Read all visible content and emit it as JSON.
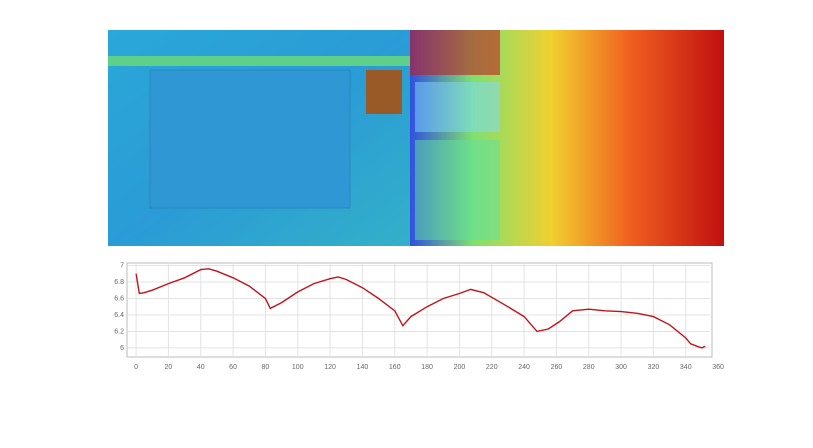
{
  "chart_data": {
    "type": "line",
    "x": [
      0,
      2,
      5,
      10,
      20,
      30,
      40,
      45,
      50,
      60,
      70,
      80,
      83,
      90,
      100,
      110,
      120,
      125,
      130,
      140,
      150,
      160,
      165,
      170,
      180,
      190,
      200,
      207,
      215,
      230,
      240,
      248,
      255,
      262,
      270,
      280,
      290,
      300,
      310,
      320,
      330,
      340,
      343,
      347,
      350,
      352
    ],
    "values": [
      6.9,
      6.66,
      6.67,
      6.7,
      6.78,
      6.85,
      6.95,
      6.96,
      6.93,
      6.85,
      6.75,
      6.6,
      6.48,
      6.55,
      6.68,
      6.78,
      6.84,
      6.86,
      6.83,
      6.73,
      6.6,
      6.45,
      6.27,
      6.38,
      6.5,
      6.6,
      6.66,
      6.71,
      6.67,
      6.5,
      6.38,
      6.2,
      6.23,
      6.32,
      6.45,
      6.47,
      6.45,
      6.44,
      6.42,
      6.38,
      6.28,
      6.12,
      6.05,
      6.02,
      6.0,
      6.02
    ],
    "color": "#c0141c",
    "xlim": [
      -5,
      355
    ],
    "xticks": [
      0,
      20,
      40,
      60,
      80,
      100,
      120,
      140,
      160,
      180,
      200,
      220,
      240,
      260,
      280,
      300,
      320,
      340,
      360
    ],
    "ylim": [
      5.89,
      7.03
    ],
    "yticks": [
      6,
      6.2,
      6.4,
      6.6,
      6.8,
      7
    ],
    "grid": true
  }
}
